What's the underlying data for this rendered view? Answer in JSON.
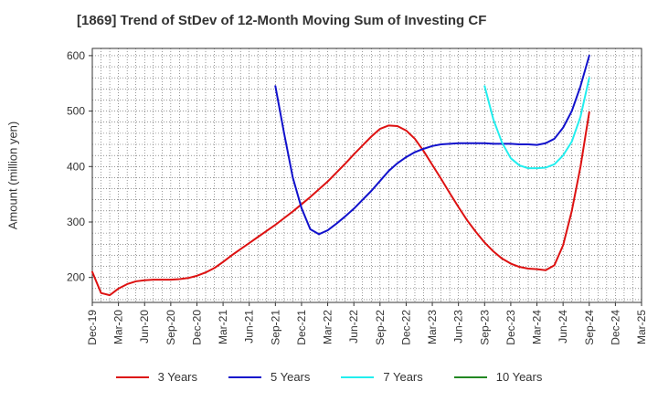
{
  "chart_data": {
    "type": "line",
    "title": "[1869]  Trend of StDev of 12-Month Moving Sum of Investing CF",
    "ylabel": "Amount (million yen)",
    "xlabel": "",
    "ylim": [
      155,
      613
    ],
    "yticks": [
      200,
      300,
      400,
      500,
      600
    ],
    "x_categories": [
      "Dec-19",
      "Mar-20",
      "Jun-20",
      "Sep-20",
      "Dec-20",
      "Mar-21",
      "Jun-21",
      "Sep-21",
      "Dec-21",
      "Mar-22",
      "Jun-22",
      "Sep-22",
      "Dec-22",
      "Mar-23",
      "Jun-23",
      "Sep-23",
      "Dec-23",
      "Mar-24",
      "Jun-24",
      "Sep-24",
      "Dec-24",
      "Mar-25"
    ],
    "grid": true,
    "legend_position": "bottom",
    "series": [
      {
        "name": "3 Years",
        "color": "#dd1111",
        "points": [
          [
            "Dec-19",
            210
          ],
          [
            "Jan-20",
            172
          ],
          [
            "Feb-20",
            168
          ],
          [
            "Mar-20",
            180
          ],
          [
            "Apr-20",
            188
          ],
          [
            "May-20",
            193
          ],
          [
            "Jun-20",
            195
          ],
          [
            "Jul-20",
            196
          ],
          [
            "Aug-20",
            196
          ],
          [
            "Sep-20",
            196
          ],
          [
            "Oct-20",
            197
          ],
          [
            "Nov-20",
            199
          ],
          [
            "Dec-20",
            203
          ],
          [
            "Jan-21",
            209
          ],
          [
            "Feb-21",
            217
          ],
          [
            "Mar-21",
            228
          ],
          [
            "Apr-21",
            240
          ],
          [
            "May-21",
            251
          ],
          [
            "Jun-21",
            262
          ],
          [
            "Jul-21",
            273
          ],
          [
            "Aug-21",
            284
          ],
          [
            "Sep-21",
            295
          ],
          [
            "Oct-21",
            307
          ],
          [
            "Nov-21",
            319
          ],
          [
            "Dec-21",
            332
          ],
          [
            "Jan-22",
            345
          ],
          [
            "Feb-22",
            359
          ],
          [
            "Mar-22",
            373
          ],
          [
            "Apr-22",
            389
          ],
          [
            "May-22",
            405
          ],
          [
            "Jun-22",
            422
          ],
          [
            "Jul-22",
            438
          ],
          [
            "Aug-22",
            454
          ],
          [
            "Sep-22",
            468
          ],
          [
            "Oct-22",
            474
          ],
          [
            "Nov-22",
            473
          ],
          [
            "Dec-22",
            465
          ],
          [
            "Jan-23",
            450
          ],
          [
            "Feb-23",
            428
          ],
          [
            "Mar-23",
            403
          ],
          [
            "Apr-23",
            378
          ],
          [
            "May-23",
            352
          ],
          [
            "Jun-23",
            327
          ],
          [
            "Jul-23",
            303
          ],
          [
            "Aug-23",
            282
          ],
          [
            "Sep-23",
            263
          ],
          [
            "Oct-23",
            247
          ],
          [
            "Nov-23",
            234
          ],
          [
            "Dec-23",
            225
          ],
          [
            "Jan-24",
            219
          ],
          [
            "Feb-24",
            216
          ],
          [
            "Mar-24",
            215
          ],
          [
            "Apr-24",
            213
          ],
          [
            "May-24",
            222
          ],
          [
            "Jun-24",
            258
          ],
          [
            "Jul-24",
            320
          ],
          [
            "Aug-24",
            400
          ],
          [
            "Sep-24",
            498
          ]
        ]
      },
      {
        "name": "5 Years",
        "color": "#1111cc",
        "points": [
          [
            "Sep-21",
            545
          ],
          [
            "Oct-21",
            460
          ],
          [
            "Nov-21",
            380
          ],
          [
            "Dec-21",
            325
          ],
          [
            "Jan-22",
            287
          ],
          [
            "Feb-22",
            278
          ],
          [
            "Mar-22",
            285
          ],
          [
            "Apr-22",
            297
          ],
          [
            "May-22",
            310
          ],
          [
            "Jun-22",
            324
          ],
          [
            "Jul-22",
            340
          ],
          [
            "Aug-22",
            356
          ],
          [
            "Sep-22",
            374
          ],
          [
            "Oct-22",
            392
          ],
          [
            "Nov-22",
            406
          ],
          [
            "Dec-22",
            417
          ],
          [
            "Jan-23",
            426
          ],
          [
            "Feb-23",
            432
          ],
          [
            "Mar-23",
            437
          ],
          [
            "Apr-23",
            440
          ],
          [
            "May-23",
            441
          ],
          [
            "Jun-23",
            442
          ],
          [
            "Jul-23",
            442
          ],
          [
            "Aug-23",
            442
          ],
          [
            "Sep-23",
            442
          ],
          [
            "Oct-23",
            441
          ],
          [
            "Nov-23",
            441
          ],
          [
            "Dec-23",
            441
          ],
          [
            "Jan-24",
            440
          ],
          [
            "Feb-24",
            440
          ],
          [
            "Mar-24",
            439
          ],
          [
            "Apr-24",
            442
          ],
          [
            "May-24",
            450
          ],
          [
            "Jun-24",
            470
          ],
          [
            "Jul-24",
            500
          ],
          [
            "Aug-24",
            545
          ],
          [
            "Sep-24",
            600
          ]
        ]
      },
      {
        "name": "7 Years",
        "color": "#22eeee",
        "points": [
          [
            "Sep-23",
            545
          ],
          [
            "Oct-23",
            485
          ],
          [
            "Nov-23",
            443
          ],
          [
            "Dec-23",
            415
          ],
          [
            "Jan-24",
            402
          ],
          [
            "Feb-24",
            397
          ],
          [
            "Mar-24",
            397
          ],
          [
            "Apr-24",
            398
          ],
          [
            "May-24",
            404
          ],
          [
            "Jun-24",
            420
          ],
          [
            "Jul-24",
            445
          ],
          [
            "Aug-24",
            490
          ],
          [
            "Sep-24",
            560
          ]
        ]
      },
      {
        "name": "10 Years",
        "color": "#228822",
        "points": []
      }
    ]
  }
}
